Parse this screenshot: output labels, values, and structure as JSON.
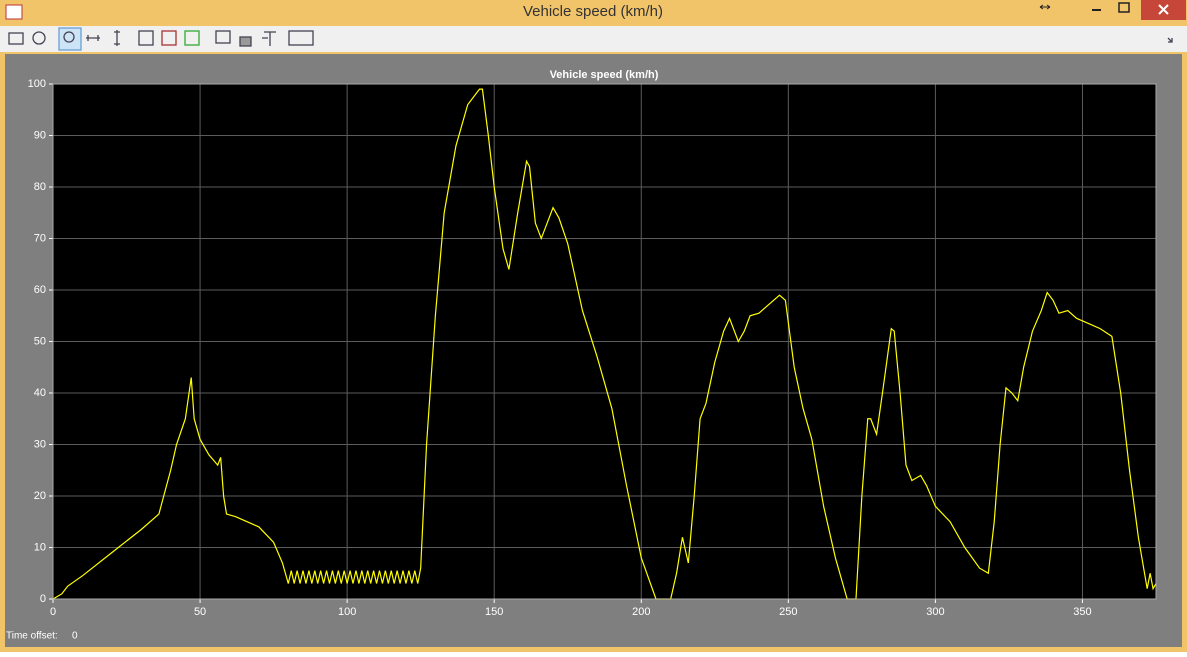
{
  "window": {
    "title": "Vehicle speed (km/h)"
  },
  "chart_data": {
    "type": "line",
    "title": "Vehicle speed (km/h)",
    "x": [
      0,
      3,
      5,
      10,
      20,
      30,
      36,
      40,
      42,
      45,
      47,
      48,
      50,
      53,
      56,
      57,
      58,
      59,
      62,
      70,
      75,
      78,
      80,
      81,
      82,
      83,
      84,
      85,
      86,
      87,
      88,
      89,
      90,
      91,
      92,
      93,
      94,
      95,
      96,
      97,
      98,
      99,
      100,
      101,
      102,
      103,
      104,
      105,
      106,
      107,
      108,
      109,
      110,
      111,
      112,
      113,
      114,
      115,
      116,
      117,
      118,
      119,
      120,
      121,
      122,
      123,
      124,
      125,
      127,
      130,
      133,
      137,
      141,
      145,
      146,
      148,
      150,
      153,
      155,
      158,
      161,
      162,
      164,
      166,
      168,
      170,
      172,
      175,
      180,
      185,
      190,
      195,
      200,
      205,
      210,
      212,
      214,
      216,
      218,
      220,
      222,
      225,
      228,
      230,
      233,
      235,
      237,
      240,
      243,
      247,
      249,
      252,
      255,
      258,
      262,
      266,
      270,
      273,
      275,
      277,
      278,
      280,
      282,
      285,
      286,
      288,
      290,
      292,
      295,
      297,
      300,
      305,
      310,
      315,
      318,
      320,
      322,
      324,
      326,
      328,
      330,
      333,
      336,
      338,
      340,
      342,
      345,
      348,
      352,
      356,
      360,
      363,
      366,
      369,
      372,
      373,
      374,
      375
    ],
    "series": [
      {
        "color": "#ffff00",
        "values": [
          0,
          1,
          2.5,
          4.5,
          9,
          13.5,
          16.5,
          25,
          30,
          35,
          43,
          35,
          31,
          28,
          26,
          27.5,
          20,
          16.5,
          16,
          14,
          11,
          7,
          3,
          5.5,
          3,
          5.5,
          3,
          5.5,
          3,
          5.5,
          3,
          5.5,
          3,
          5.5,
          3,
          5.5,
          3,
          5.5,
          3,
          5.5,
          3,
          5.5,
          3,
          5.5,
          3,
          5.5,
          3,
          5.5,
          3,
          5.5,
          3,
          5.5,
          3,
          5.5,
          3,
          5.5,
          3,
          5.5,
          3,
          5.5,
          3,
          5.5,
          3,
          5.5,
          3,
          5.5,
          3,
          6,
          30,
          55,
          75,
          88,
          96,
          99,
          99,
          90,
          80,
          68,
          64,
          75,
          85,
          84,
          73,
          70,
          73,
          76,
          74,
          69,
          56,
          47,
          37,
          22,
          8,
          0,
          0,
          5,
          12,
          7,
          20,
          35,
          38,
          46,
          52,
          54.5,
          50,
          52,
          55,
          55.5,
          57,
          59,
          58,
          45,
          37,
          31,
          18,
          8,
          0,
          0,
          20,
          35,
          35,
          32,
          40,
          52.5,
          52,
          40,
          26,
          23,
          24,
          22,
          18,
          15,
          10,
          6,
          5,
          15,
          30,
          41,
          40,
          38.5,
          45,
          52,
          56,
          59.5,
          58,
          55.5,
          56,
          54.5,
          53.5,
          52.5,
          51,
          40,
          25,
          12,
          2,
          5,
          2,
          3
        ]
      }
    ],
    "xlim": [
      0,
      375
    ],
    "ylim": [
      0,
      100
    ],
    "xticks": [
      0,
      50,
      100,
      150,
      200,
      250,
      300,
      350
    ],
    "yticks": [
      0,
      10,
      20,
      30,
      40,
      50,
      60,
      70,
      80,
      90,
      100
    ],
    "grid": true
  },
  "status": {
    "label": "Time offset:",
    "value": "0"
  }
}
